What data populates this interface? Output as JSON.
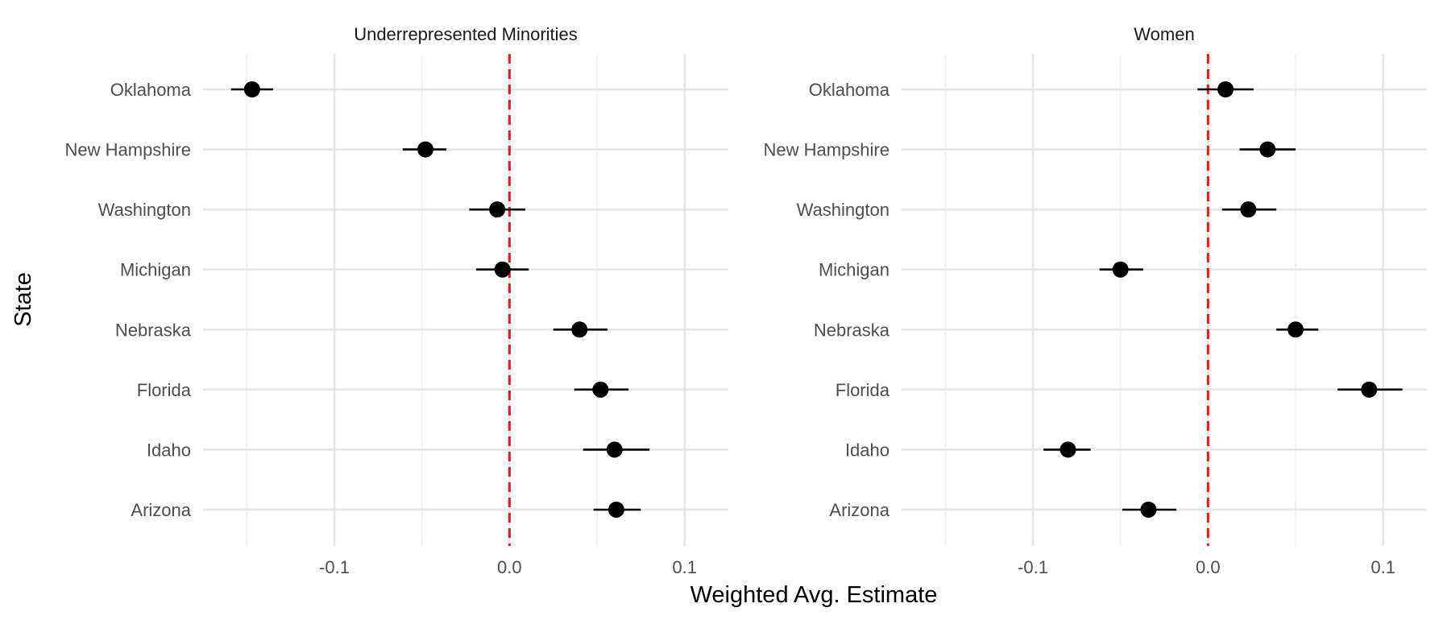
{
  "chart_data": {
    "type": "scatter",
    "xlabel": "Weighted Avg. Estimate",
    "ylabel": "State",
    "categories": [
      "Oklahoma",
      "New Hampshire",
      "Washington",
      "Michigan",
      "Nebraska",
      "Florida",
      "Idaho",
      "Arizona"
    ],
    "xlim": [
      -0.175,
      0.125
    ],
    "xticks": [
      -0.1,
      0.0,
      0.1
    ],
    "xtick_labels": [
      "-0.1",
      "0.0",
      "0.1"
    ],
    "reference_line": {
      "x": 0,
      "style": "dashed",
      "color": "#e41a1c"
    },
    "grid": true,
    "panels": [
      {
        "title": "Underrepresented Minorities",
        "points": [
          {
            "state": "Oklahoma",
            "estimate": -0.147,
            "low": -0.159,
            "high": -0.135
          },
          {
            "state": "New Hampshire",
            "estimate": -0.048,
            "low": -0.061,
            "high": -0.036
          },
          {
            "state": "Washington",
            "estimate": -0.007,
            "low": -0.023,
            "high": 0.009
          },
          {
            "state": "Michigan",
            "estimate": -0.004,
            "low": -0.019,
            "high": 0.011
          },
          {
            "state": "Nebraska",
            "estimate": 0.04,
            "low": 0.025,
            "high": 0.056
          },
          {
            "state": "Florida",
            "estimate": 0.052,
            "low": 0.037,
            "high": 0.068
          },
          {
            "state": "Idaho",
            "estimate": 0.06,
            "low": 0.042,
            "high": 0.08
          },
          {
            "state": "Arizona",
            "estimate": 0.061,
            "low": 0.048,
            "high": 0.075
          }
        ]
      },
      {
        "title": "Women",
        "points": [
          {
            "state": "Oklahoma",
            "estimate": 0.01,
            "low": -0.006,
            "high": 0.026
          },
          {
            "state": "New Hampshire",
            "estimate": 0.034,
            "low": 0.018,
            "high": 0.05
          },
          {
            "state": "Washington",
            "estimate": 0.023,
            "low": 0.008,
            "high": 0.039
          },
          {
            "state": "Michigan",
            "estimate": -0.05,
            "low": -0.062,
            "high": -0.037
          },
          {
            "state": "Nebraska",
            "estimate": 0.05,
            "low": 0.039,
            "high": 0.063
          },
          {
            "state": "Florida",
            "estimate": 0.092,
            "low": 0.074,
            "high": 0.111
          },
          {
            "state": "Idaho",
            "estimate": -0.08,
            "low": -0.094,
            "high": -0.067
          },
          {
            "state": "Arizona",
            "estimate": -0.034,
            "low": -0.049,
            "high": -0.018
          }
        ]
      }
    ]
  }
}
